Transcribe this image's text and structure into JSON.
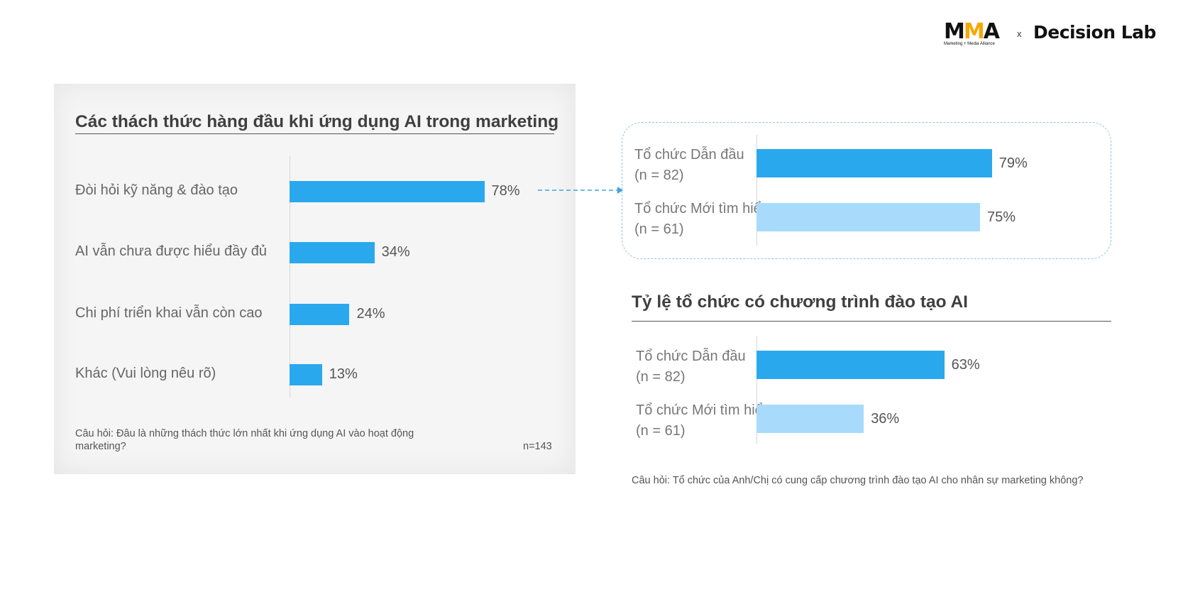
{
  "logos": {
    "mma": {
      "name": "MMA",
      "tagline": "Marketing + Media Alliance"
    },
    "separator": "x",
    "decision_lab": "Decision Lab"
  },
  "colors": {
    "primary_bar": "#2aa8ee",
    "secondary_bar": "#a8dbfb"
  },
  "chart_data": [
    {
      "type": "bar",
      "orientation": "horizontal",
      "title": "Các thách thức hàng đầu khi ứng dụng AI trong marketing",
      "categories": [
        "Đòi hỏi kỹ năng & đào tạo",
        "AI vẫn chưa được hiểu đầy đủ",
        "Chi phí triển khai vẫn còn cao",
        "Khác (Vui lòng nêu rõ)"
      ],
      "values": [
        78,
        34,
        24,
        13
      ],
      "value_labels": [
        "78%",
        "34%",
        "24%",
        "13%"
      ],
      "unit": "%",
      "xlim": [
        0,
        100
      ],
      "grid": false,
      "question": "Câu hỏi: Đâu là những thách thức lớn nhất khi ứng dụng AI vào hoạt động marketing?",
      "n": "n=143"
    },
    {
      "type": "bar",
      "orientation": "horizontal",
      "title": "",
      "categories": [
        "Tổ chức Dẫn đầu",
        "Tổ chức Mới tìm hiểu"
      ],
      "sublabels": [
        "(n = 82)",
        "(n = 61)"
      ],
      "values": [
        79,
        75
      ],
      "value_labels": [
        "79%",
        "75%"
      ],
      "unit": "%",
      "xlim": [
        0,
        100
      ],
      "grid": false
    },
    {
      "type": "bar",
      "orientation": "horizontal",
      "title": "Tỷ lệ tổ chức có chương trình đào tạo AI",
      "categories": [
        "Tổ chức Dẫn đầu",
        "Tổ chức Mới tìm hiểu"
      ],
      "sublabels": [
        "(n = 82)",
        "(n = 61)"
      ],
      "values": [
        63,
        36
      ],
      "value_labels": [
        "63%",
        "36%"
      ],
      "unit": "%",
      "xlim": [
        0,
        100
      ],
      "grid": false,
      "question": "Câu hỏi: Tổ chức của Anh/Chị có cung cấp chương trình đào tạo AI cho nhân sự marketing không?"
    }
  ]
}
